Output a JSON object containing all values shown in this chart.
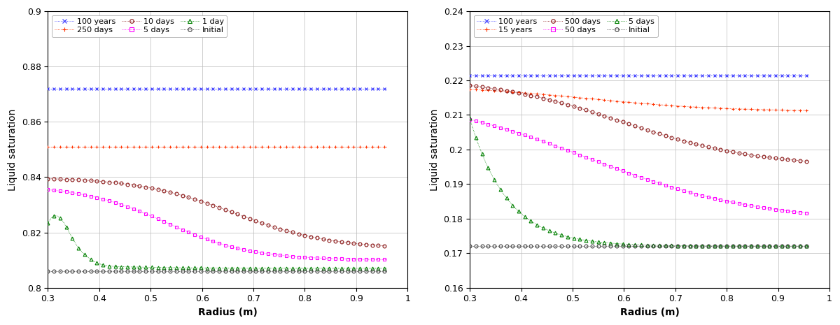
{
  "plot1": {
    "xlabel": "Radius (m)",
    "ylabel": "Liquid saturation",
    "xlim": [
      0.3,
      1.0
    ],
    "ylim": [
      0.8,
      0.9
    ],
    "yticks": [
      0.8,
      0.82,
      0.84,
      0.86,
      0.88,
      0.9
    ],
    "xticks": [
      0.3,
      0.4,
      0.5,
      0.6,
      0.7,
      0.8,
      0.9,
      1.0
    ],
    "series": [
      {
        "label": "100 years",
        "color": "#3333FF",
        "marker": "x",
        "mfc": "auto"
      },
      {
        "label": "250 days",
        "color": "#FF3300",
        "marker": "+",
        "mfc": "auto"
      },
      {
        "label": "10 days",
        "color": "#8B1A1A",
        "marker": "o",
        "mfc": "none"
      },
      {
        "label": "5 days",
        "color": "#FF00FF",
        "marker": "s",
        "mfc": "none"
      },
      {
        "label": "1 day",
        "color": "#008000",
        "marker": "^",
        "mfc": "none"
      },
      {
        "label": "Initial",
        "color": "#404040",
        "marker": "o",
        "mfc": "none"
      }
    ]
  },
  "plot2": {
    "xlabel": "Radius (m)",
    "ylabel": "Liquid saturation",
    "xlim": [
      0.3,
      1.0
    ],
    "ylim": [
      0.16,
      0.24
    ],
    "yticks": [
      0.16,
      0.17,
      0.18,
      0.19,
      0.2,
      0.21,
      0.22,
      0.23,
      0.24
    ],
    "xticks": [
      0.3,
      0.4,
      0.5,
      0.6,
      0.7,
      0.8,
      0.9,
      1.0
    ],
    "series": [
      {
        "label": "100 years",
        "color": "#3333FF",
        "marker": "x",
        "mfc": "auto"
      },
      {
        "label": "15 years",
        "color": "#FF3300",
        "marker": "+",
        "mfc": "auto"
      },
      {
        "label": "500 days",
        "color": "#8B1A1A",
        "marker": "o",
        "mfc": "none"
      },
      {
        "label": "50 days",
        "color": "#FF00FF",
        "marker": "s",
        "mfc": "none"
      },
      {
        "label": "5 days",
        "color": "#008000",
        "marker": "^",
        "mfc": "none"
      },
      {
        "label": "Initial",
        "color": "#404040",
        "marker": "o",
        "mfc": "none"
      }
    ]
  },
  "background_color": "#ffffff",
  "grid_color": "#bbbbbb",
  "markersize": 3.5,
  "linewidth": 0.6,
  "marker_every": 6
}
